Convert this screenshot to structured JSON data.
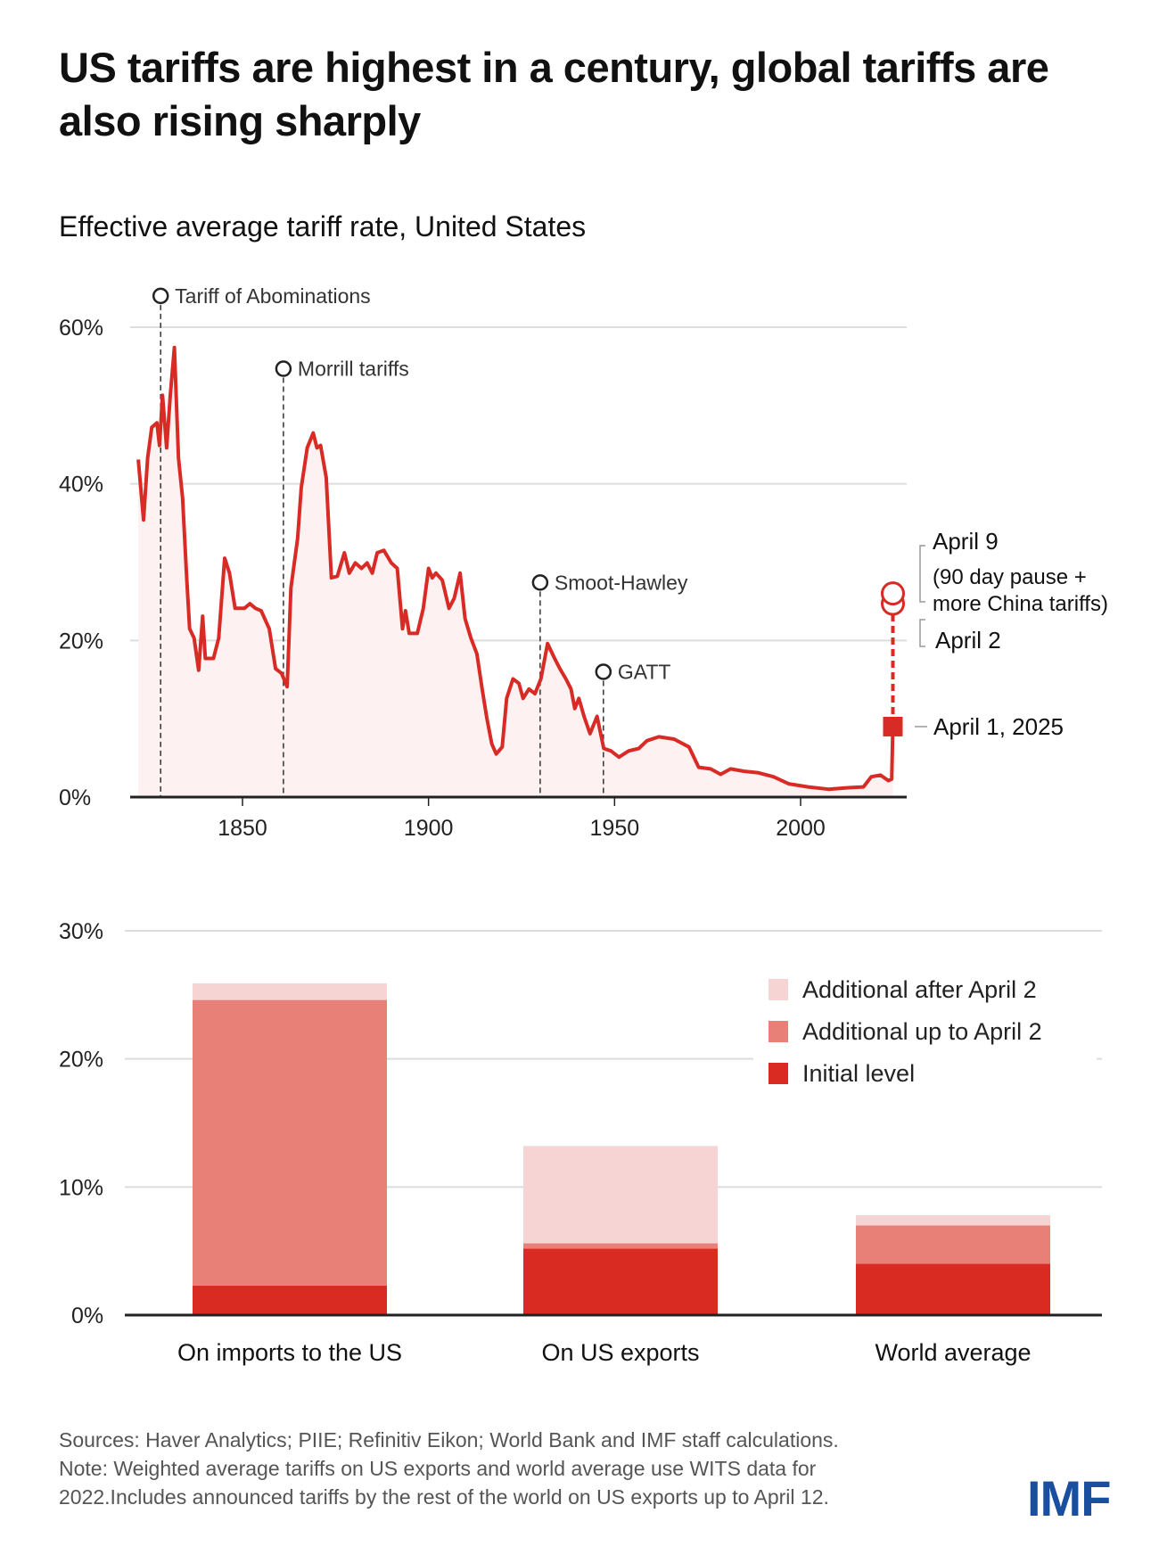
{
  "title": "US tariffs are highest in a century, global tariffs are also rising sharply",
  "subtitle": "Effective average tariff rate, United States",
  "colors": {
    "line": "#d92b25",
    "area": "#fdf1f1",
    "initial": "#d92b22",
    "up_to_april2": "#e98078",
    "after_april2": "#f6d4d3",
    "grid": "#dddddd",
    "logo": "#1a4fa0"
  },
  "chart_data": [
    {
      "type": "line",
      "title": "Effective average tariff rate, United States",
      "ylim": [
        0,
        60
      ],
      "yticks": [
        "0%",
        "20%",
        "40%",
        "60%"
      ],
      "ytick_values": [
        0,
        20,
        40,
        60
      ],
      "xticks": [
        "1850",
        "1900",
        "1950",
        "2000"
      ],
      "xtick_values": [
        1850,
        1900,
        1950,
        2000
      ],
      "grid": true,
      "area_fill": true,
      "x": [
        1822,
        1823.4,
        1824.5,
        1825.6,
        1827,
        1827.7,
        1828.5,
        1829.6,
        1830.6,
        1831.7,
        1832.8,
        1833.9,
        1835,
        1835.8,
        1837,
        1838.2,
        1839.3,
        1840,
        1842.2,
        1843.6,
        1845.2,
        1846.5,
        1848,
        1850.5,
        1852,
        1853.5,
        1855,
        1857.2,
        1858.9,
        1860.5,
        1862,
        1863,
        1864.8,
        1865.8,
        1867.4,
        1869,
        1870,
        1871,
        1872.5,
        1873.9,
        1875.5,
        1877.4,
        1878.7,
        1880.3,
        1882,
        1883.5,
        1884.9,
        1886.2,
        1888,
        1890,
        1891.6,
        1893,
        1893.8,
        1894.8,
        1897,
        1898.6,
        1900,
        1901,
        1902,
        1903.7,
        1905.5,
        1906.9,
        1908.5,
        1909.8,
        1911.4,
        1913,
        1914.4,
        1915.7,
        1917,
        1918.2,
        1919.8,
        1921,
        1922.7,
        1924.3,
        1925.4,
        1927,
        1928.6,
        1930.2,
        1932,
        1933.9,
        1935.3,
        1936.9,
        1938.3,
        1939.3,
        1940.4,
        1941.8,
        1943.4,
        1945.3,
        1947.1,
        1949,
        1951.2,
        1953.8,
        1956.5,
        1958.7,
        1961.9,
        1966,
        1970,
        1972.6,
        1975.8,
        1978.5,
        1981.2,
        1984.7,
        1988.7,
        1992.7,
        1996.8,
        2002,
        2007.5,
        2012.8,
        2016.9,
        2019,
        2021.5,
        2023.6,
        2024.5
      ],
      "y": [
        43.1,
        35.4,
        43.3,
        47.2,
        47.8,
        44.9,
        51.3,
        44.6,
        51.3,
        57.4,
        43.3,
        38.2,
        28,
        21.5,
        20.3,
        16.2,
        23.1,
        17.7,
        17.7,
        20.3,
        30.5,
        28.6,
        24.1,
        24.1,
        24.7,
        24.1,
        23.8,
        21.5,
        16.4,
        15.8,
        14.1,
        26.7,
        33,
        39.5,
        44.6,
        46.5,
        44.6,
        44.9,
        40.8,
        28,
        28.2,
        31.2,
        28.6,
        29.9,
        29.2,
        29.9,
        28.6,
        31.2,
        31.5,
        29.9,
        29.2,
        21.5,
        23.8,
        20.9,
        20.9,
        24.1,
        29.2,
        28,
        28.6,
        27.7,
        24.1,
        25.4,
        28.6,
        22.8,
        20.3,
        18.3,
        13.8,
        10,
        6.8,
        5.5,
        6.4,
        12.6,
        15.1,
        14.5,
        12.6,
        13.8,
        13.2,
        15.1,
        19.6,
        17.7,
        16.4,
        15.1,
        13.8,
        11.3,
        12.6,
        10.3,
        8.1,
        10.3,
        6.2,
        5.9,
        5.1,
        5.9,
        6.2,
        7.2,
        7.7,
        7.4,
        6.4,
        3.8,
        3.6,
        2.9,
        3.6,
        3.3,
        3.1,
        2.6,
        1.7,
        1.3,
        1.0,
        1.2,
        1.3,
        2.6,
        2.8,
        2.1,
        2.3
      ],
      "points_2025": [
        {
          "label": "April 1, 2025",
          "value": 9.0,
          "marker": "square"
        },
        {
          "label": "April 2",
          "value": 24.7,
          "marker": "circle"
        },
        {
          "label": "April 9",
          "sublabel_1": "(90 day pause +",
          "sublabel_2": "more China tariffs)",
          "value": 26.0,
          "marker": "circle"
        }
      ],
      "annotations": [
        {
          "label": "Tariff of Abominations",
          "year": 1828,
          "marker_value": 64
        },
        {
          "label": "Morrill tariffs",
          "year": 1861,
          "marker_value": 54.7
        },
        {
          "label": "Smoot-Hawley",
          "year": 1930,
          "marker_value": 27.4
        },
        {
          "label": "GATT",
          "year": 1947,
          "marker_value": 16
        }
      ]
    },
    {
      "type": "bar",
      "stacked": true,
      "ylim": [
        0,
        30
      ],
      "yticks": [
        "0%",
        "10%",
        "20%",
        "30%"
      ],
      "ytick_values": [
        0,
        10,
        20,
        30
      ],
      "grid": true,
      "legend_position": "top-right",
      "categories": [
        "On imports to the US",
        "On US exports",
        "World average"
      ],
      "series": [
        {
          "name": "Initial level",
          "values": [
            2.3,
            5.2,
            4.0
          ]
        },
        {
          "name": "Additional up to April 2",
          "values": [
            22.3,
            0.4,
            3.0
          ]
        },
        {
          "name": "Additional after April 2",
          "values": [
            1.3,
            7.6,
            0.8
          ]
        }
      ]
    }
  ],
  "footer": {
    "sources": "Sources: Haver Analytics; PIIE; Refinitiv Eikon; World Bank and IMF staff calculations.",
    "note_1": "Note: Weighted average tariffs on US exports and world average use WITS data for",
    "note_2": "2022.Includes announced tariffs by the rest of the world on US exports up to April 12."
  },
  "logo": "IMF"
}
